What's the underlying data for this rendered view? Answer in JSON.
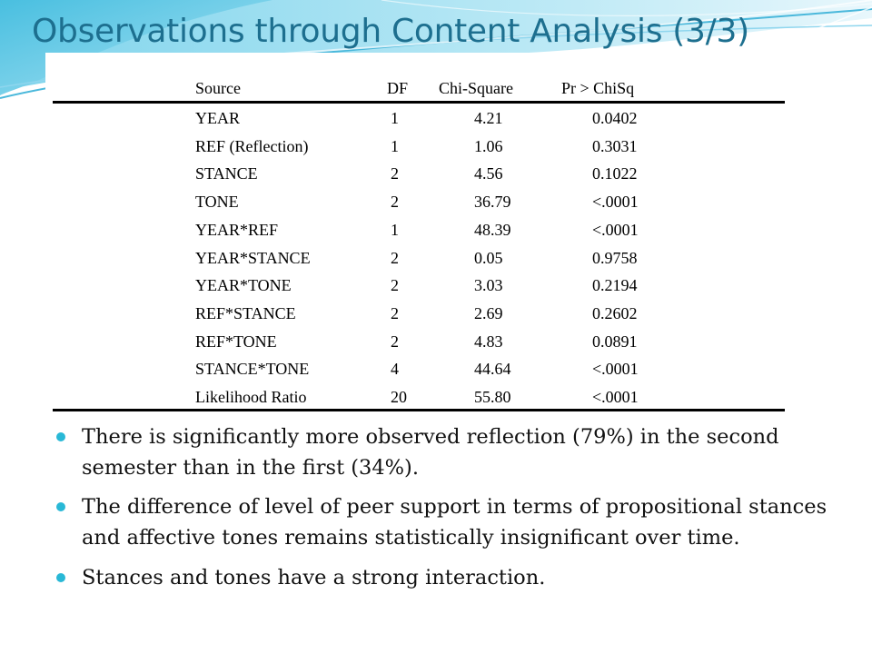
{
  "slide": {
    "title": "Observations through Content Analysis (3/3)"
  },
  "table": {
    "headers": [
      "Source",
      "DF",
      "Chi-Square",
      "Pr > ChiSq"
    ],
    "rows": [
      [
        "YEAR",
        "1",
        "4.21",
        "0.0402"
      ],
      [
        "REF (Reflection)",
        "1",
        "1.06",
        "0.3031"
      ],
      [
        "STANCE",
        "2",
        "4.56",
        "0.1022"
      ],
      [
        "TONE",
        "2",
        "36.79",
        "<.0001"
      ],
      [
        "YEAR*REF",
        "1",
        "48.39",
        "<.0001"
      ],
      [
        "YEAR*STANCE",
        "2",
        "0.05",
        "0.9758"
      ],
      [
        "YEAR*TONE",
        "2",
        "3.03",
        "0.2194"
      ],
      [
        "REF*STANCE",
        "2",
        "2.69",
        "0.2602"
      ],
      [
        "REF*TONE",
        "2",
        "4.83",
        "0.0891"
      ],
      [
        "STANCE*TONE",
        "4",
        "44.64",
        "<.0001"
      ],
      [
        "Likelihood Ratio",
        "20",
        "55.80",
        "<.0001"
      ]
    ]
  },
  "bullets": [
    "There is significantly more observed reflection (79%) in the second semester than in the first (34%).",
    "The difference of level of peer support in terms of propositional stances and affective tones remains statistically insignificant over time.",
    "Stances and tones have a strong interaction."
  ],
  "colors": {
    "title": "#1d6f8f",
    "bullet": "#29b8d6",
    "wave": "#5fc8e6"
  }
}
